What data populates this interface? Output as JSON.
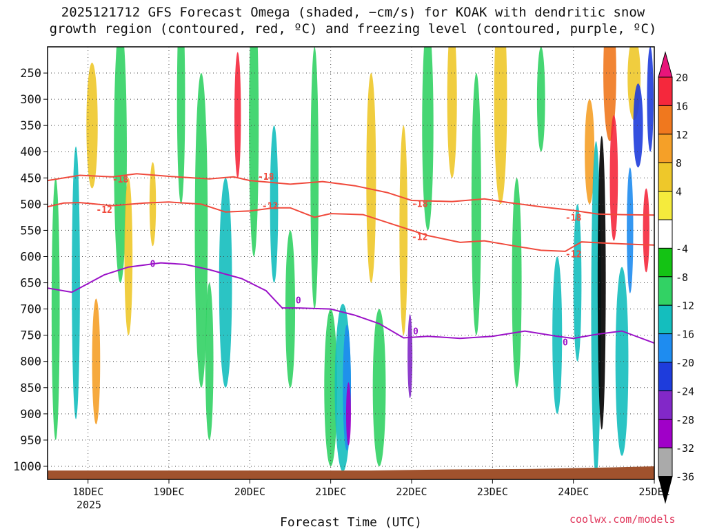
{
  "chart_data": {
    "type": "heatmap",
    "title_line1": "2025121712 GFS Forecast Omega (shaded, −cm/s) for KOAK with dendritic snow",
    "title_line2": "growth region (contoured, red, ºC) and freezing level (contoured, purple, ºC)",
    "xlabel": "Forecast Time (UTC)",
    "x_ticks": [
      "18DEC",
      "19DEC",
      "20DEC",
      "21DEC",
      "22DEC",
      "23DEC",
      "24DEC",
      "25DEC"
    ],
    "x_year_label": "2025",
    "xlim_days": [
      17.5,
      25.0
    ],
    "y_ticks": [
      250,
      300,
      350,
      400,
      450,
      500,
      550,
      600,
      650,
      700,
      750,
      800,
      850,
      900,
      950,
      1000
    ],
    "ylim_hpa": [
      200,
      1025
    ],
    "colorbar": {
      "tick_labels": [
        "20",
        "16",
        "12",
        "8",
        "4",
        "-4",
        "-8",
        "-12",
        "-16",
        "-20",
        "-24",
        "-28",
        "-32",
        "-36"
      ],
      "colors": [
        "#e8147a",
        "#f5283c",
        "#f0781e",
        "#f5a028",
        "#eec82a",
        "#f5eb3c",
        "#ffffff",
        "#14c314",
        "#32d264",
        "#14bebe",
        "#1e8cf0",
        "#1e3cdc",
        "#8228c8",
        "#a000c8",
        "#aaaaaa",
        "#000000"
      ]
    },
    "contours": [
      {
        "name": "-18",
        "color": "#f04a3c",
        "points": [
          [
            17.5,
            455
          ],
          [
            17.9,
            445
          ],
          [
            18.3,
            448
          ],
          [
            18.6,
            442
          ],
          [
            19.0,
            447
          ],
          [
            19.5,
            452
          ],
          [
            19.8,
            448
          ],
          [
            20.0,
            455
          ],
          [
            20.5,
            462
          ],
          [
            20.9,
            457
          ],
          [
            21.3,
            465
          ],
          [
            21.7,
            478
          ],
          [
            22.0,
            493
          ],
          [
            22.5,
            495
          ],
          [
            22.9,
            490
          ],
          [
            23.2,
            497
          ],
          [
            23.6,
            505
          ],
          [
            24.0,
            512
          ],
          [
            24.3,
            519
          ],
          [
            24.6,
            520
          ],
          [
            25.0,
            521
          ]
        ],
        "labels": [
          [
            18.4,
            452
          ],
          [
            20.2,
            447
          ],
          [
            22.1,
            499
          ],
          [
            24.0,
            525
          ]
        ]
      },
      {
        "name": "-12",
        "color": "#f04a3c",
        "points": [
          [
            17.5,
            505
          ],
          [
            17.7,
            498
          ],
          [
            17.9,
            497
          ],
          [
            18.3,
            503
          ],
          [
            18.7,
            498
          ],
          [
            19.0,
            496
          ],
          [
            19.4,
            500
          ],
          [
            19.7,
            515
          ],
          [
            20.0,
            513
          ],
          [
            20.3,
            507
          ],
          [
            20.5,
            507
          ],
          [
            20.8,
            525
          ],
          [
            21.0,
            518
          ],
          [
            21.4,
            520
          ],
          [
            21.8,
            540
          ],
          [
            22.2,
            560
          ],
          [
            22.6,
            573
          ],
          [
            22.9,
            570
          ],
          [
            23.2,
            578
          ],
          [
            23.6,
            588
          ],
          [
            23.9,
            590
          ],
          [
            24.1,
            572
          ],
          [
            24.5,
            575
          ],
          [
            24.8,
            577
          ],
          [
            25.0,
            578
          ]
        ],
        "labels": [
          [
            18.2,
            510
          ],
          [
            20.25,
            503
          ],
          [
            22.1,
            562
          ],
          [
            24.0,
            595
          ]
        ]
      },
      {
        "name": "0",
        "color": "#9b12c8",
        "points": [
          [
            17.5,
            660
          ],
          [
            17.8,
            668
          ],
          [
            18.2,
            635
          ],
          [
            18.5,
            620
          ],
          [
            18.9,
            612
          ],
          [
            19.2,
            615
          ],
          [
            19.5,
            625
          ],
          [
            19.9,
            642
          ],
          [
            20.2,
            665
          ],
          [
            20.4,
            698
          ],
          [
            20.6,
            698
          ],
          [
            21.0,
            700
          ],
          [
            21.3,
            712
          ],
          [
            21.6,
            728
          ],
          [
            21.9,
            755
          ],
          [
            22.2,
            752
          ],
          [
            22.6,
            756
          ],
          [
            23.0,
            752
          ],
          [
            23.4,
            742
          ],
          [
            23.8,
            752
          ],
          [
            24.0,
            756
          ],
          [
            24.3,
            748
          ],
          [
            24.6,
            742
          ],
          [
            25.0,
            765
          ]
        ],
        "labels": [
          [
            18.8,
            613
          ],
          [
            20.6,
            683
          ],
          [
            22.05,
            742
          ],
          [
            23.9,
            763
          ]
        ]
      }
    ]
  },
  "credit": "coolwx.com/models"
}
